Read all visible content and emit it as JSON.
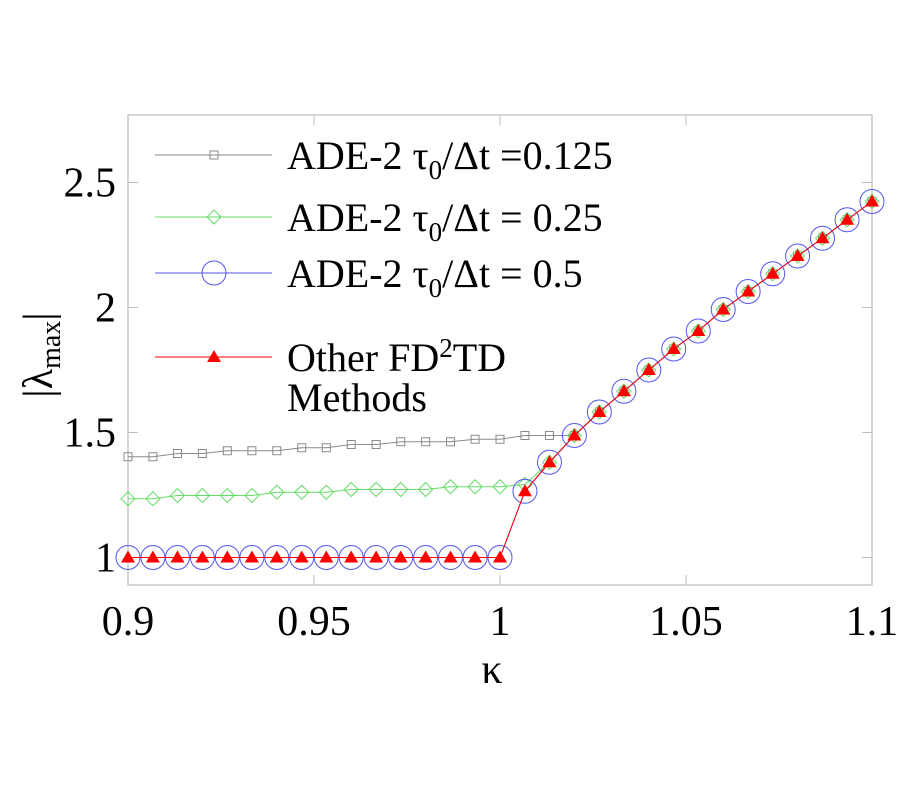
{
  "chart_data": {
    "type": "line",
    "title": "",
    "xlabel": "κ",
    "ylabel": "|λ",
    "ylabel_sub": "max",
    "ylabel_end": "|",
    "xlim": [
      0.9,
      1.1
    ],
    "ylim": [
      0.89,
      2.77
    ],
    "xticks": [
      0.9,
      0.95,
      1,
      1.05,
      1.1
    ],
    "xtick_labels": [
      "0.9",
      "0.95",
      "1",
      "1.05",
      "1.1"
    ],
    "yticks": [
      1,
      1.5,
      2,
      2.5
    ],
    "ytick_labels": [
      "1",
      "1.5",
      "2",
      "2.5"
    ],
    "grid": false,
    "legend_placement": "top-left",
    "x": [
      0.9,
      0.9067,
      0.9133,
      0.92,
      0.9267,
      0.9333,
      0.94,
      0.9467,
      0.9533,
      0.96,
      0.9667,
      0.9733,
      0.98,
      0.9867,
      0.9933,
      1.0,
      1.0067,
      1.0133,
      1.02,
      1.0267,
      1.0333,
      1.04,
      1.0467,
      1.0533,
      1.06,
      1.0667,
      1.0733,
      1.08,
      1.0867,
      1.0933,
      1.1
    ],
    "series": [
      {
        "name": "ADE-2  τ0/Δt =0.125",
        "label_main": "ADE-2  τ",
        "label_sub": "0",
        "label_rest": "/Δt =0.125",
        "color": "#8a8a8a",
        "marker": "square",
        "values": [
          1.403,
          1.403,
          1.416,
          1.416,
          1.427,
          1.427,
          1.427,
          1.439,
          1.439,
          1.452,
          1.452,
          1.463,
          1.463,
          1.463,
          1.473,
          1.473,
          1.488,
          1.488,
          1.488,
          1.582,
          1.665,
          1.75,
          1.834,
          1.906,
          1.992,
          2.064,
          2.135,
          2.206,
          2.277,
          2.351,
          2.424
        ]
      },
      {
        "name": "ADE-2  τ0/Δt = 0.25",
        "label_main": "ADE-2  τ",
        "label_sub": "0",
        "label_rest": "/Δt = 0.25",
        "color": "#66dd66",
        "marker": "diamond",
        "values": [
          1.235,
          1.235,
          1.248,
          1.248,
          1.248,
          1.248,
          1.261,
          1.261,
          1.261,
          1.272,
          1.272,
          1.272,
          1.272,
          1.283,
          1.283,
          1.283,
          1.292,
          1.381,
          1.488,
          1.582,
          1.665,
          1.75,
          1.834,
          1.906,
          1.992,
          2.064,
          2.135,
          2.206,
          2.277,
          2.351,
          2.424
        ]
      },
      {
        "name": "ADE-2 τ0/Δt = 0.5",
        "label_main": "ADE-2 τ",
        "label_sub": "0",
        "label_rest": "/Δt = 0.5",
        "color": "#5555ee",
        "marker": "circle",
        "values": [
          1,
          1,
          1,
          1,
          1,
          1,
          1,
          1,
          1,
          1,
          1,
          1,
          1,
          1,
          1,
          1,
          1.265,
          1.381,
          1.488,
          1.582,
          1.665,
          1.75,
          1.834,
          1.906,
          1.992,
          2.064,
          2.135,
          2.206,
          2.277,
          2.351,
          2.424
        ]
      },
      {
        "name": "Other FD2TD Methods",
        "label_main": "Other FD",
        "label_sup": "2",
        "label_rest": "TD",
        "label_line2": "Methods",
        "color": "#ff0000",
        "marker": "triangle",
        "values": [
          1,
          1,
          1,
          1,
          1,
          1,
          1,
          1,
          1,
          1,
          1,
          1,
          1,
          1,
          1,
          1,
          1.265,
          1.381,
          1.488,
          1.582,
          1.665,
          1.75,
          1.834,
          1.906,
          1.992,
          2.064,
          2.135,
          2.206,
          2.277,
          2.351,
          2.424
        ]
      }
    ]
  }
}
